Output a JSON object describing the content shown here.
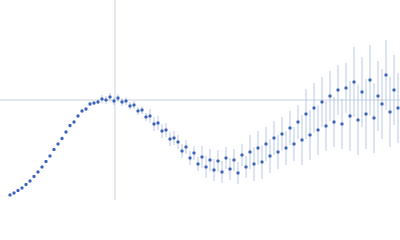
{
  "chart_data": {
    "type": "scatter",
    "x": [
      10,
      14,
      18,
      22,
      26,
      30,
      34,
      38,
      42,
      46,
      50,
      54,
      58,
      62,
      66,
      70,
      74,
      78,
      82,
      86,
      90,
      94,
      98,
      102,
      106,
      110,
      114,
      118,
      122,
      126,
      130,
      134,
      138,
      142,
      146,
      150,
      154,
      158,
      162,
      166,
      170,
      174,
      178,
      182,
      186,
      190,
      194,
      198,
      202,
      206,
      210,
      214,
      218,
      222,
      226,
      230,
      234,
      238,
      242,
      246,
      250,
      254,
      258,
      262,
      266,
      270,
      274,
      278,
      282,
      286,
      290,
      294,
      298,
      302,
      306,
      310,
      314,
      318,
      322,
      326,
      330,
      334,
      338,
      342,
      346,
      350,
      354,
      358,
      362,
      366,
      370,
      374,
      378,
      382,
      386,
      390,
      394,
      398
    ],
    "values": [
      5,
      7,
      9.5,
      12,
      15.5,
      19,
      23.5,
      28,
      33,
      38.5,
      44,
      50.5,
      56,
      61.5,
      68,
      74.5,
      78,
      84,
      89,
      91,
      96,
      97,
      98,
      101,
      100,
      103,
      99,
      102,
      98,
      99,
      94,
      95,
      89,
      90,
      83,
      84,
      76,
      77,
      69,
      70,
      61,
      62,
      58,
      49,
      53,
      42,
      47,
      36,
      43,
      33,
      40,
      30,
      39,
      28,
      42,
      31,
      40,
      27,
      45,
      33,
      48,
      36,
      52,
      38,
      56,
      44,
      62,
      48,
      66,
      52,
      72,
      56,
      78,
      60,
      86,
      65,
      92,
      70,
      98,
      74,
      104,
      78,
      110,
      76,
      112,
      84,
      118,
      80,
      108,
      86,
      120,
      82,
      104,
      96,
      125,
      88,
      110,
      92
    ],
    "errors": [
      1,
      1,
      1,
      1,
      1,
      1,
      1,
      1,
      1,
      1,
      1,
      1,
      1,
      2,
      2,
      2,
      2,
      2,
      2,
      2,
      2,
      2,
      2,
      4,
      4,
      4,
      4,
      4,
      4,
      4,
      4,
      4,
      4,
      4,
      4,
      7,
      7,
      7,
      7,
      7,
      7,
      7,
      7,
      7,
      7,
      7,
      7,
      7,
      11,
      11,
      11,
      11,
      11,
      11,
      11,
      11,
      11,
      11,
      11,
      11,
      17,
      17,
      17,
      17,
      17,
      17,
      17,
      17,
      17,
      17,
      17,
      17,
      17,
      25,
      25,
      25,
      25,
      25,
      25,
      25,
      25,
      25,
      25,
      25,
      25,
      35,
      35,
      35,
      35,
      35,
      35,
      35,
      35,
      35,
      35,
      35,
      35,
      35
    ],
    "color": "#3a63b8",
    "error_color": "#a9bde3",
    "xlim": [
      0,
      400
    ],
    "ylim": [
      0,
      200
    ],
    "xticks": [
      115
    ],
    "yticks": [
      100
    ],
    "grid": true
  }
}
